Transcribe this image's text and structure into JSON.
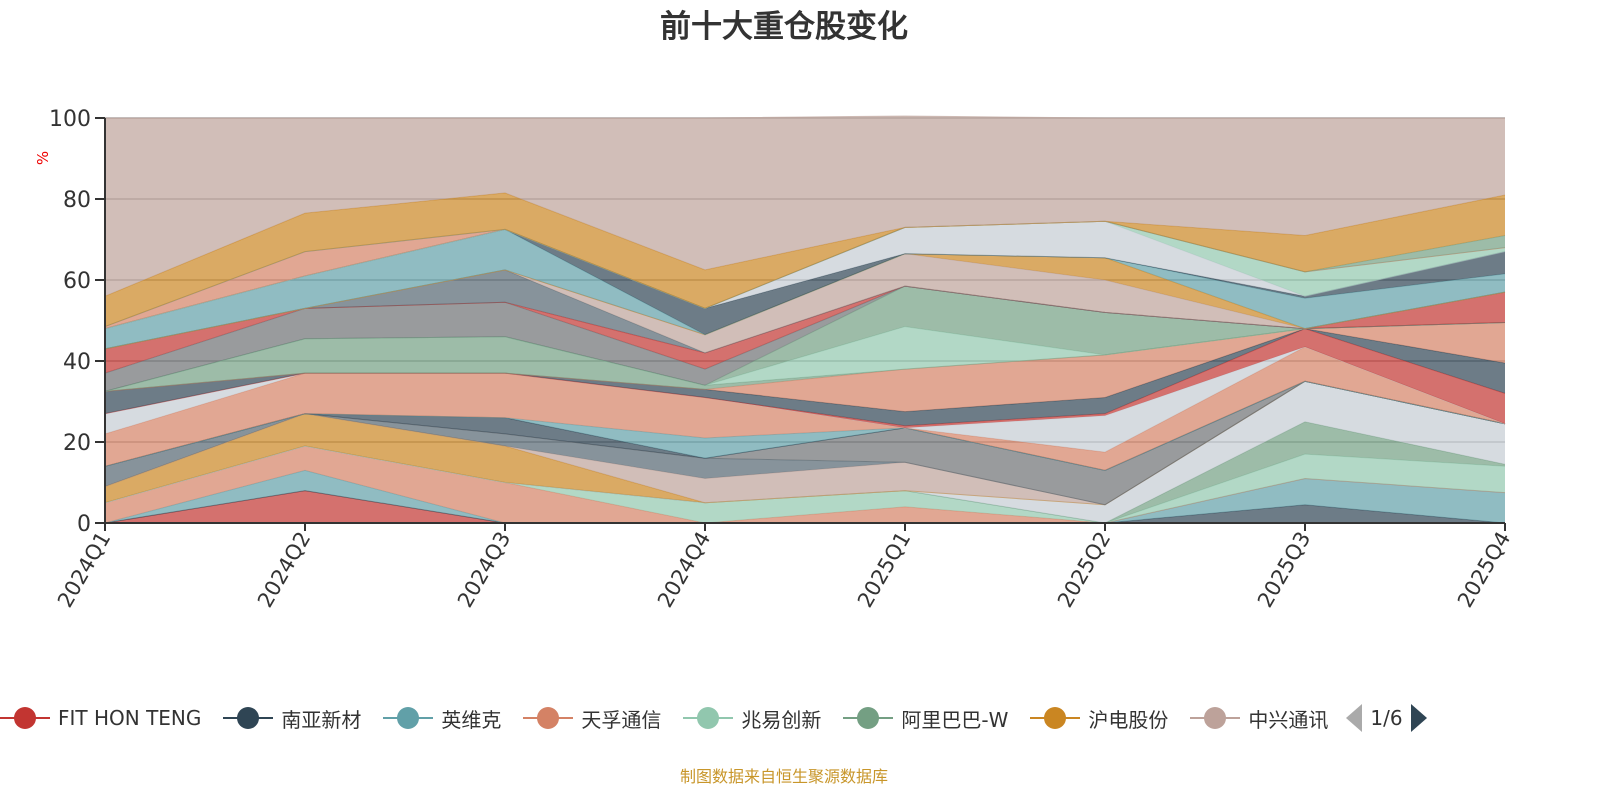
{
  "chart_data": {
    "type": "area",
    "stacked": true,
    "title": "前十大重仓股变化",
    "ylabel": "%",
    "ylim": [
      0,
      100
    ],
    "yticks": [
      0,
      20,
      40,
      60,
      80,
      100
    ],
    "categories": [
      "2024Q1",
      "2024Q2",
      "2024Q3",
      "2024Q4",
      "2025Q1",
      "2025Q2",
      "2025Q3",
      "2025Q4"
    ],
    "grid": true,
    "legend_position": "bottom",
    "legend": [
      {
        "name": "FIT HON TENG",
        "color": "#c23531"
      },
      {
        "name": "南亚新材",
        "color": "#2f4554"
      },
      {
        "name": "英维克",
        "color": "#61a0a8"
      },
      {
        "name": "天孚通信",
        "color": "#d48265"
      },
      {
        "name": "兆易创新",
        "color": "#91c7ae"
      },
      {
        "name": "阿里巴巴-W",
        "color": "#749f83"
      },
      {
        "name": "沪电股份",
        "color": "#ca8622"
      },
      {
        "name": "中兴通讯",
        "color": "#bda29a"
      }
    ],
    "legend_page": "1/6",
    "layers": [
      {
        "color": "#c23531",
        "values": [
          0,
          8,
          0,
          0,
          0,
          0,
          0,
          0
        ]
      },
      {
        "color": "#2f4554",
        "values": [
          0,
          0,
          0,
          0,
          0,
          0,
          4.5,
          0
        ]
      },
      {
        "color": "#61a0a8",
        "values": [
          0,
          5,
          0,
          0,
          0,
          0,
          6.5,
          7.5
        ]
      },
      {
        "color": "#d48265",
        "values": [
          5,
          6,
          10,
          0,
          4,
          0,
          0,
          0
        ]
      },
      {
        "color": "#91c7ae",
        "values": [
          0,
          0,
          0,
          5,
          4,
          0,
          6,
          6.5
        ]
      },
      {
        "color": "#749f83",
        "values": [
          0,
          0,
          0,
          0,
          0,
          0,
          8,
          0.5
        ]
      },
      {
        "color": "#c4ccd3",
        "values": [
          0,
          0,
          0,
          0,
          0,
          4.5,
          10,
          10
        ]
      },
      {
        "color": "#ca8622",
        "values": [
          4,
          8,
          9,
          0,
          0,
          0,
          0,
          0
        ]
      },
      {
        "color": "#bda29a",
        "values": [
          0,
          0,
          0,
          6,
          7,
          0,
          0,
          0
        ]
      },
      {
        "color": "#546570",
        "values": [
          5,
          0,
          3,
          5,
          0,
          0,
          0,
          0
        ]
      },
      {
        "color": "#6e7074",
        "values": [
          0,
          0,
          0,
          0,
          8.5,
          8.5,
          0,
          0
        ]
      },
      {
        "color": "#2f4554",
        "values": [
          0,
          0,
          4,
          0,
          0,
          0,
          0,
          0
        ]
      },
      {
        "color": "#61a0a8",
        "values": [
          0,
          0,
          0,
          5,
          0,
          0,
          0,
          0
        ]
      },
      {
        "color": "#d48265",
        "values": [
          8,
          10,
          11,
          10,
          0,
          4.5,
          8.5,
          0
        ]
      },
      {
        "color": "#c4ccd3",
        "values": [
          5,
          0,
          0,
          0,
          0,
          9,
          0,
          0
        ]
      },
      {
        "color": "#c23531",
        "values": [
          0,
          0,
          0,
          0,
          0.5,
          0.5,
          4.5,
          7.5
        ]
      },
      {
        "color": "#2f4554",
        "values": [
          5.5,
          0,
          0,
          2,
          3.5,
          4,
          0,
          7.5
        ]
      },
      {
        "color": "#d48265",
        "values": [
          0,
          0,
          0,
          0,
          10.5,
          10.5,
          0,
          10
        ]
      },
      {
        "color": "#749f83",
        "values": [
          0,
          8.5,
          9,
          1,
          0,
          0,
          0,
          0
        ]
      },
      {
        "color": "#91c7ae",
        "values": [
          0,
          0,
          0,
          0,
          10.5,
          0,
          0,
          0
        ]
      },
      {
        "color": "#749f83",
        "values": [
          0,
          0,
          0,
          0,
          10,
          10.5,
          0,
          0
        ]
      },
      {
        "color": "#6e7074",
        "values": [
          4.5,
          7.5,
          8.5,
          4,
          0,
          0,
          0,
          0
        ]
      },
      {
        "color": "#c23531",
        "values": [
          6,
          0,
          0,
          4,
          0,
          0,
          0,
          7.5
        ]
      },
      {
        "color": "#546570",
        "values": [
          0,
          0,
          8,
          0,
          0,
          0,
          0,
          0
        ]
      },
      {
        "color": "#bda29a",
        "values": [
          0,
          0,
          0,
          4.5,
          8,
          8,
          0,
          0
        ]
      },
      {
        "color": "#ca8622",
        "values": [
          0,
          0,
          0,
          0,
          0,
          5.5,
          0,
          0
        ]
      },
      {
        "color": "#61a0a8",
        "values": [
          5,
          8,
          10,
          0,
          0,
          0,
          7.5,
          4.5
        ]
      },
      {
        "color": "#2f4554",
        "values": [
          0,
          0,
          0,
          6.5,
          0,
          0,
          0.5,
          5.5
        ]
      },
      {
        "color": "#c4ccd3",
        "values": [
          0,
          0,
          0,
          0,
          6.5,
          9,
          0,
          0
        ]
      },
      {
        "color": "#91c7ae",
        "values": [
          0,
          0,
          0,
          0,
          0,
          0,
          6,
          1
        ]
      },
      {
        "color": "#d48265",
        "values": [
          0.5,
          6,
          0,
          0,
          0,
          0,
          0,
          0
        ]
      },
      {
        "color": "#749f83",
        "values": [
          0,
          0,
          0,
          0,
          0,
          0,
          0,
          3
        ]
      },
      {
        "color": "#ca8622",
        "values": [
          7.5,
          9.5,
          9,
          9.5,
          0,
          0,
          9,
          10
        ]
      },
      {
        "color": "#bda29a",
        "values": [
          44,
          23.5,
          18.5,
          37.5,
          27.5,
          25.5,
          29,
          19
        ]
      }
    ]
  },
  "source": "制图数据来自恒生聚源数据库"
}
